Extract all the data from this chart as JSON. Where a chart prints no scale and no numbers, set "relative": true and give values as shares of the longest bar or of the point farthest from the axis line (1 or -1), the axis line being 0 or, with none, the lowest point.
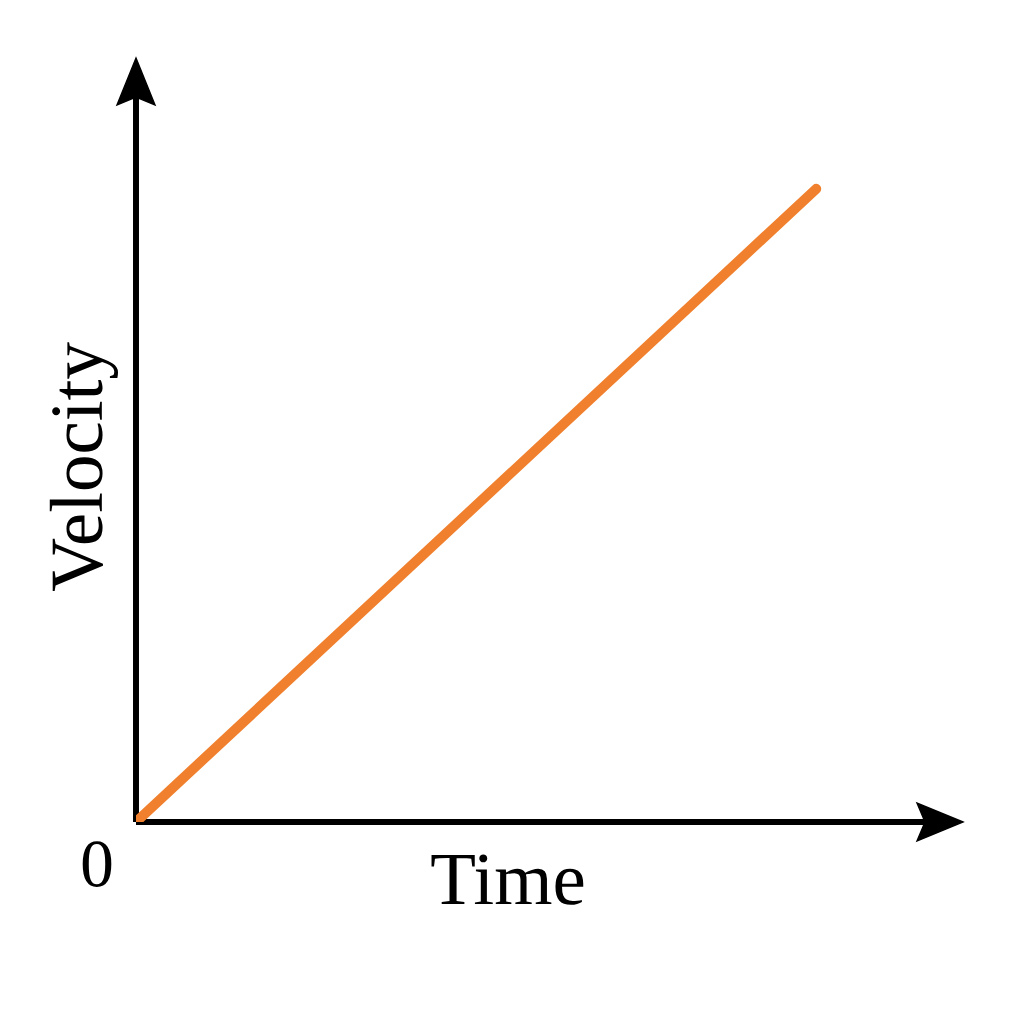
{
  "chart_data": {
    "type": "line",
    "xlabel": "Time",
    "ylabel": "Velocity",
    "annotations": [
      "0"
    ],
    "categories": [
      null,
      null
    ],
    "relative": true,
    "series": [
      {
        "color": "#f0802e",
        "values": [
          0,
          1
        ]
      }
    ],
    "marker": "none",
    "line_style": "solid"
  }
}
